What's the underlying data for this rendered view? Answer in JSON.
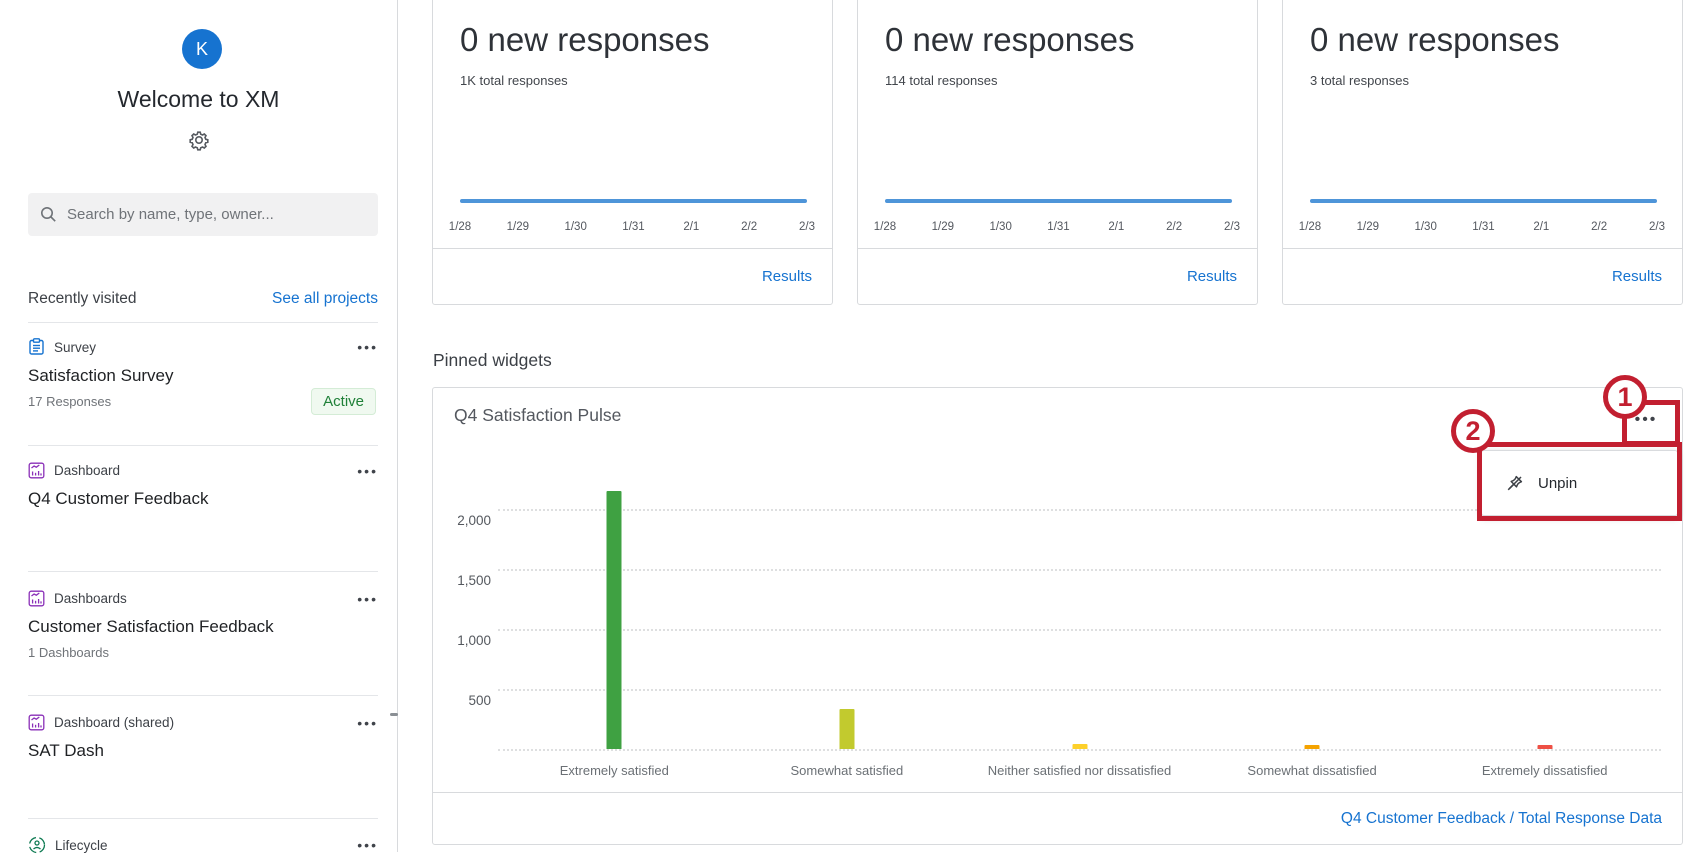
{
  "sidebar": {
    "avatar_initial": "K",
    "welcome_title": "Welcome to XM",
    "search_placeholder": "Search by name, type, owner...",
    "recently_visited_label": "Recently visited",
    "see_all_label": "See all projects",
    "items": [
      {
        "type": "Survey",
        "title": "Satisfaction Survey",
        "subtitle": "17 Responses",
        "badge": "Active",
        "icon": "survey-icon"
      },
      {
        "type": "Dashboard",
        "title": "Q4 Customer Feedback",
        "subtitle": "",
        "icon": "dashboard-icon"
      },
      {
        "type": "Dashboards",
        "title": "Customer Satisfaction Feedback",
        "subtitle": "1 Dashboards",
        "icon": "dashboard-icon"
      },
      {
        "type": "Dashboard (shared)",
        "title": "SAT Dash",
        "subtitle": "",
        "icon": "dashboard-icon"
      },
      {
        "type": "Lifecycle",
        "title": "",
        "subtitle": "",
        "icon": "lifecycle-icon"
      }
    ]
  },
  "response_cards": [
    {
      "title": "0 new responses",
      "subtitle": "1K total responses",
      "dates": [
        "1/28",
        "1/29",
        "1/30",
        "1/31",
        "2/1",
        "2/2",
        "2/3"
      ],
      "sparkline_values": [
        0,
        0,
        0,
        0,
        0,
        0,
        0
      ],
      "link": "Results"
    },
    {
      "title": "0 new responses",
      "subtitle": "114 total responses",
      "dates": [
        "1/28",
        "1/29",
        "1/30",
        "1/31",
        "2/1",
        "2/2",
        "2/3"
      ],
      "sparkline_values": [
        0,
        0,
        0,
        0,
        0,
        0,
        0
      ],
      "link": "Results"
    },
    {
      "title": "0 new responses",
      "subtitle": "3 total responses",
      "dates": [
        "1/28",
        "1/29",
        "1/30",
        "1/31",
        "2/1",
        "2/2",
        "2/3"
      ],
      "sparkline_values": [
        0,
        0,
        0,
        0,
        0,
        0,
        0
      ],
      "link": "Results"
    }
  ],
  "pinned": {
    "section_label": "Pinned widgets",
    "widget_title": "Q4 Satisfaction Pulse",
    "menu": {
      "unpin_label": "Unpin"
    },
    "footer_link": "Q4 Customer Feedback / Total Response Data",
    "annotations": {
      "step1": "1",
      "step2": "2"
    }
  },
  "chart_data": {
    "type": "bar",
    "title": "Q4 Satisfaction Pulse",
    "categories": [
      "Extremely satisfied",
      "Somewhat satisfied",
      "Neither satisfied nor dissatisfied",
      "Somewhat dissatisfied",
      "Extremely dissatisfied"
    ],
    "values": [
      2150,
      330,
      45,
      35,
      30
    ],
    "bar_colors": [
      "#3fa142",
      "#c2ca2e",
      "#fdd02a",
      "#f5a300",
      "#ee5045"
    ],
    "yticks": [
      500,
      1000,
      1500,
      2000
    ],
    "ylim": [
      0,
      2500
    ],
    "xlabel": "",
    "ylabel": "",
    "grid": "horizontal-dotted",
    "legend": "none"
  },
  "colors": {
    "accent_blue": "#1673d0",
    "annotation_red": "#c21f30",
    "active_green": "#1f8038",
    "sparkline_blue": "#4e95d9"
  }
}
